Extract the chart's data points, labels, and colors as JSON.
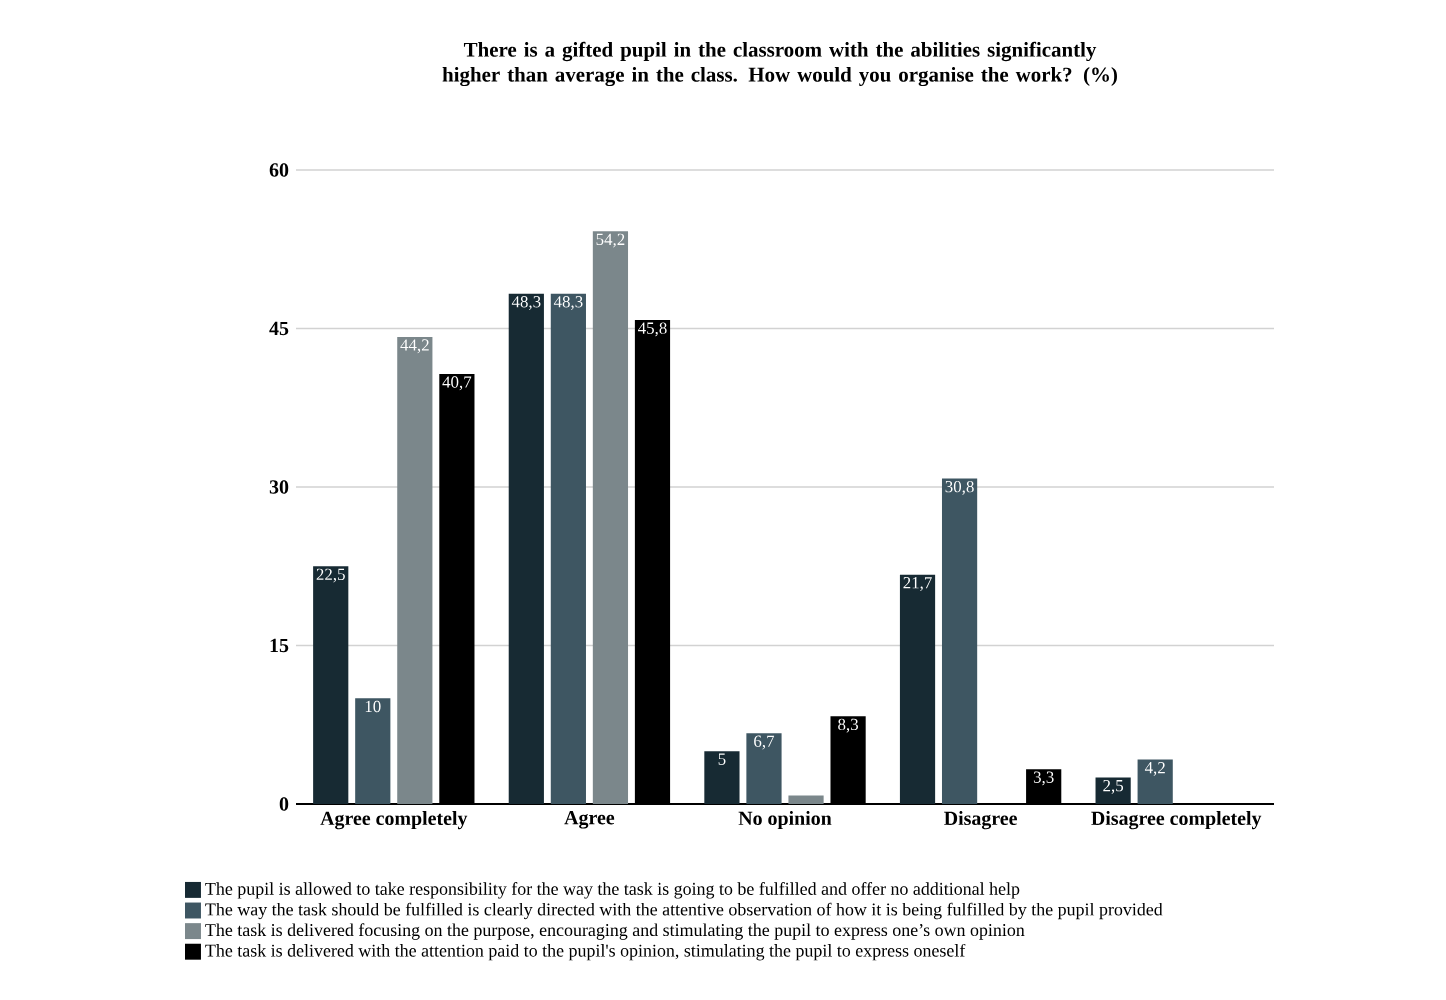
{
  "chart_data": {
    "type": "bar",
    "title": "There is a gifted pupil in the classroom with the abilities significantly higher than average in the class. How would you organise the work? (%)",
    "categories": [
      "Agree completely",
      "Agree",
      "No opinion",
      "Disagree",
      "Disagree completely"
    ],
    "series": [
      {
        "name": "The pupil is allowed to take responsibility for the way the task is going to be fulfilled and offer no additional help",
        "color": "#172a33",
        "values": [
          22.5,
          48.3,
          5,
          21.7,
          2.5
        ],
        "value_labels": [
          "22,5",
          "48,3",
          "5",
          "21,7",
          "2,5"
        ]
      },
      {
        "name": "The way the task should be fulfilled is clearly directed with the attentive observation of how it is being fulfilled by the pupil provided",
        "color": "#3e5662",
        "values": [
          10,
          48.3,
          6.7,
          30.8,
          4.2
        ],
        "value_labels": [
          "10",
          "48,3",
          "6,7",
          "30,8",
          "4,2"
        ]
      },
      {
        "name": "The task is delivered focusing on the purpose, encouraging and stimulating the pupil to express one’s own opinion",
        "color": "#7b878b",
        "values": [
          44.2,
          54.2,
          0.8,
          null,
          null
        ],
        "value_labels": [
          "44,2",
          "54,2",
          null,
          null,
          null
        ]
      },
      {
        "name": "The task is delivered with the attention paid to the pupil's opinion, stimulating the pupil to express oneself",
        "color": "#000000",
        "values": [
          40.7,
          45.8,
          8.3,
          3.3,
          null
        ],
        "value_labels": [
          "40,7",
          "45,8",
          "8,3",
          "3,3",
          null
        ]
      }
    ],
    "ylim": [
      0,
      60
    ],
    "yticks": [
      0,
      15,
      30,
      45,
      60
    ],
    "grid": "y",
    "legend": "bottom"
  }
}
